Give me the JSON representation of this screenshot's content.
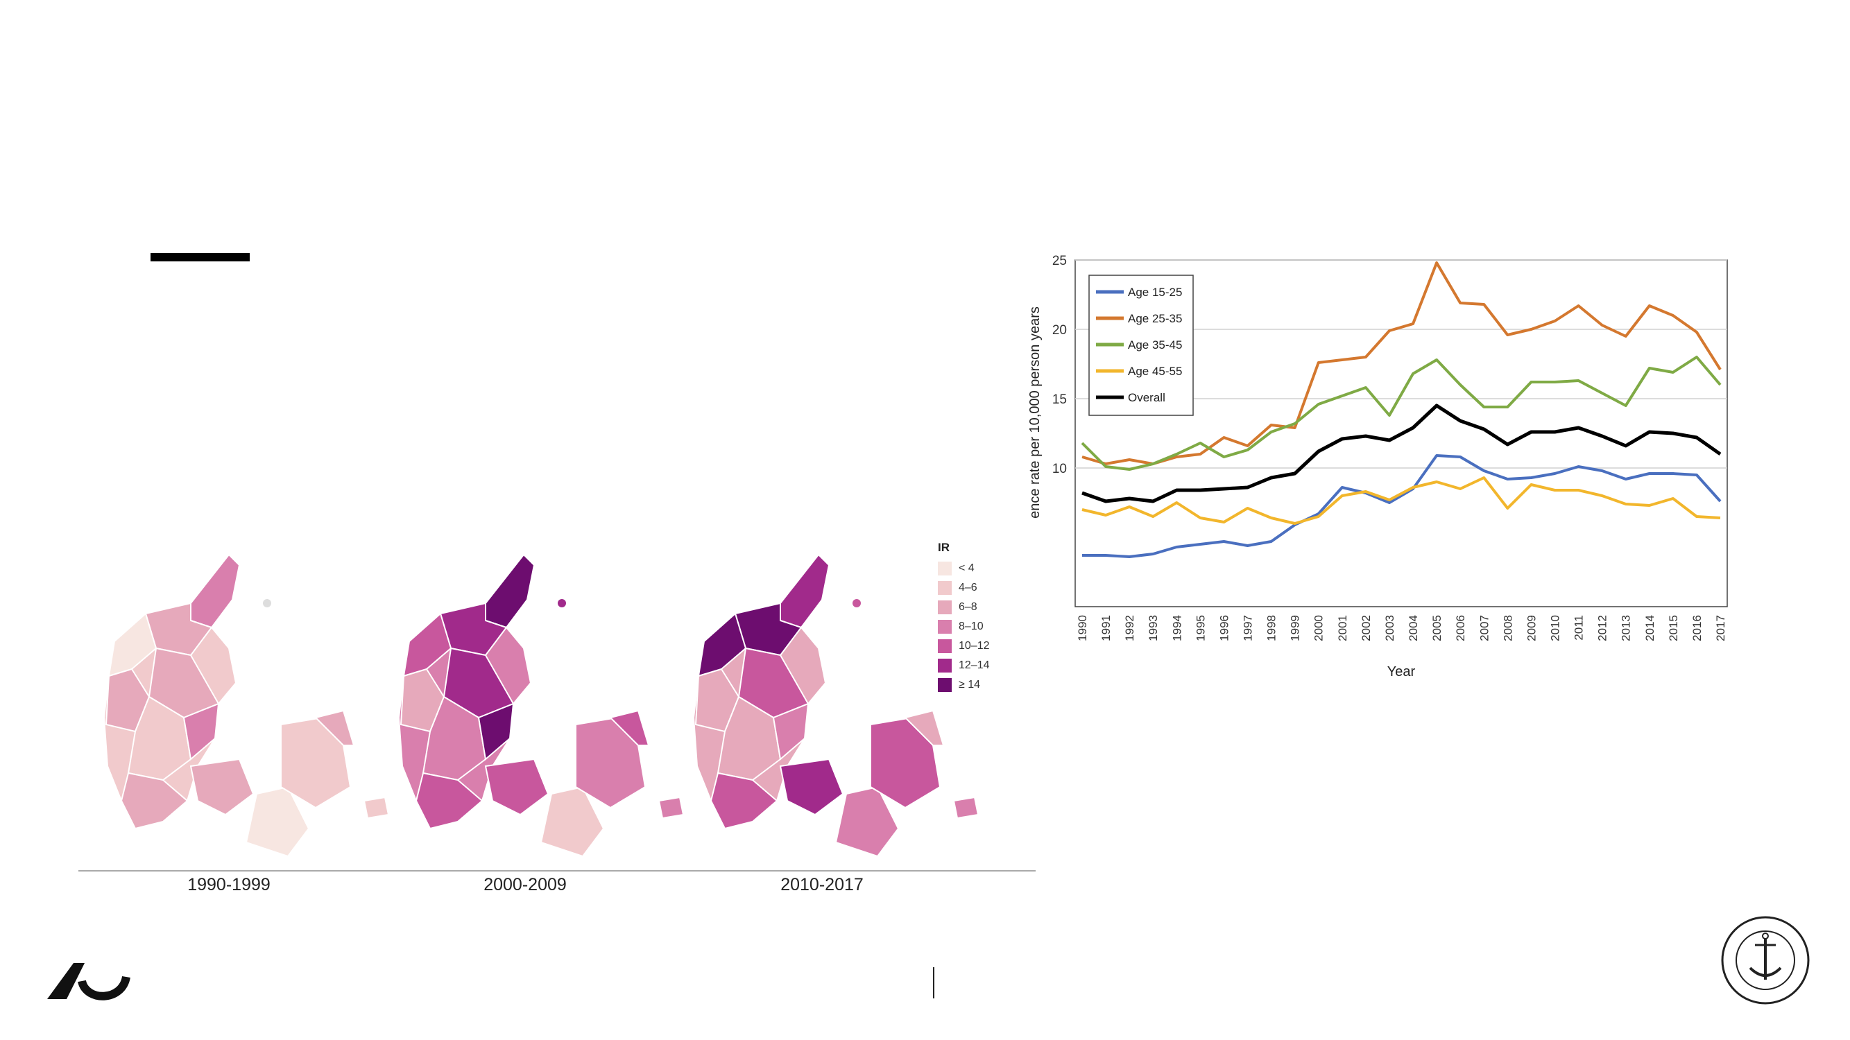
{
  "slide": {
    "title": ""
  },
  "maps": {
    "captions": [
      "1990-1999",
      "2000-2009",
      "2010-2017"
    ],
    "legend": {
      "title": "IR",
      "items": [
        {
          "label": "< 4",
          "color": "#f7e6e1"
        },
        {
          "label": "4–6",
          "color": "#f1cacc"
        },
        {
          "label": "6–8",
          "color": "#e6a9bb"
        },
        {
          "label": "8–10",
          "color": "#d97fad"
        },
        {
          "label": "10–12",
          "color": "#c8579d"
        },
        {
          "label": "12–14",
          "color": "#a12a8b"
        },
        {
          "label": "≥ 14",
          "color": "#6d0d6f"
        }
      ]
    }
  },
  "chart_data": {
    "type": "line",
    "title": "",
    "xlabel": "Year",
    "ylabel": "ence rate per 10,000 person years",
    "ylim": [
      0,
      25
    ],
    "yticks": [
      10,
      15,
      20,
      25
    ],
    "grid": true,
    "legend_position": "top-left",
    "x": [
      "1990",
      "1991",
      "1992",
      "1993",
      "1994",
      "1995",
      "1996",
      "1997",
      "1998",
      "1999",
      "2000",
      "2001",
      "2002",
      "2003",
      "2004",
      "2005",
      "2006",
      "2007",
      "2008",
      "2009",
      "2010",
      "2011",
      "2012",
      "2013",
      "2014",
      "2015",
      "2016",
      "2017"
    ],
    "series": [
      {
        "name": "Age 15-25",
        "color": "#4a6fbf",
        "values": [
          3.7,
          3.7,
          3.6,
          3.8,
          4.3,
          4.5,
          4.7,
          4.4,
          4.7,
          5.9,
          6.7,
          8.6,
          8.2,
          7.5,
          8.5,
          10.9,
          10.8,
          9.8,
          9.2,
          9.3,
          9.6,
          10.1,
          9.8,
          9.2,
          9.6,
          9.6,
          9.5,
          7.6
        ]
      },
      {
        "name": "Age 25-35",
        "color": "#d4782f",
        "values": [
          10.8,
          10.3,
          10.6,
          10.3,
          10.8,
          11.0,
          12.2,
          11.6,
          13.1,
          12.9,
          17.6,
          17.8,
          18.0,
          19.9,
          20.4,
          24.8,
          21.9,
          21.8,
          19.6,
          20.0,
          20.6,
          21.7,
          20.3,
          19.5,
          21.7,
          21.0,
          19.8,
          17.1
        ]
      },
      {
        "name": "Age 35-45",
        "color": "#7faa45",
        "values": [
          11.8,
          10.1,
          9.9,
          10.3,
          11.0,
          11.8,
          10.8,
          11.3,
          12.6,
          13.2,
          14.6,
          15.2,
          15.8,
          13.8,
          16.8,
          17.8,
          16.0,
          14.4,
          14.4,
          16.2,
          16.2,
          16.3,
          15.4,
          14.5,
          17.2,
          16.9,
          18.0,
          16.0
        ]
      },
      {
        "name": "Age 45-55",
        "color": "#f2b62c",
        "values": [
          7.0,
          6.6,
          7.2,
          6.5,
          7.5,
          6.4,
          6.1,
          7.1,
          6.4,
          6.0,
          6.5,
          8.0,
          8.3,
          7.7,
          8.6,
          9.0,
          8.5,
          9.3,
          7.1,
          8.8,
          8.4,
          8.4,
          8.0,
          7.4,
          7.3,
          7.8,
          6.5,
          6.4
        ]
      },
      {
        "name": "Overall",
        "color": "#000000",
        "values": [
          8.2,
          7.6,
          7.8,
          7.6,
          8.4,
          8.4,
          8.5,
          8.6,
          9.3,
          9.6,
          11.2,
          12.1,
          12.3,
          12.0,
          12.9,
          14.5,
          13.4,
          12.8,
          11.7,
          12.6,
          12.6,
          12.9,
          12.3,
          11.6,
          12.6,
          12.5,
          12.2,
          11.0
        ]
      }
    ]
  }
}
